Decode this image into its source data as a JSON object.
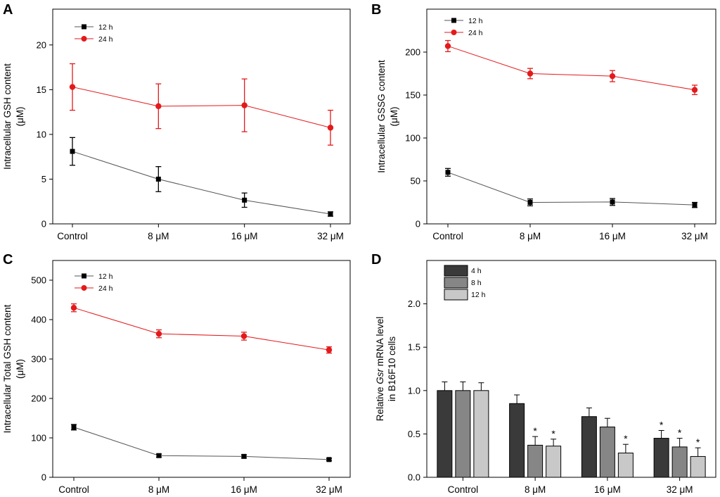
{
  "chart_data": [
    {
      "panel": "A",
      "type": "line",
      "categories": [
        "Control",
        "8 μM",
        "16 μM",
        "32 μM"
      ],
      "ylabel": [
        "Intracellular GSH content",
        "(μM)"
      ],
      "ylim": [
        0,
        24
      ],
      "yticks": [
        0,
        5,
        10,
        15,
        20
      ],
      "series": [
        {
          "name": "12 h",
          "color": "#000000",
          "marker": "square",
          "values": [
            8.1,
            5.0,
            2.65,
            1.1
          ],
          "errors": [
            1.55,
            1.4,
            0.8,
            0.25
          ]
        },
        {
          "name": "24 h",
          "color": "#e31a1c",
          "marker": "circle",
          "values": [
            15.3,
            13.15,
            13.25,
            10.75
          ],
          "errors": [
            2.6,
            2.5,
            2.95,
            1.95
          ]
        }
      ]
    },
    {
      "panel": "B",
      "type": "line",
      "categories": [
        "Control",
        "8 μM",
        "16 μM",
        "32 μM"
      ],
      "ylabel": [
        "Intracellular GSSG content",
        "(μM)"
      ],
      "ylim": [
        0,
        250
      ],
      "yticks": [
        0,
        50,
        100,
        150,
        200
      ],
      "series": [
        {
          "name": "12 h",
          "color": "#000000",
          "marker": "square",
          "values": [
            60,
            25,
            25.5,
            22
          ],
          "errors": [
            4.5,
            4.0,
            4.0,
            3.0
          ]
        },
        {
          "name": "24 h",
          "color": "#e31a1c",
          "marker": "circle",
          "values": [
            207,
            175,
            172,
            156
          ],
          "errors": [
            6.5,
            6.0,
            6.5,
            5.5
          ]
        }
      ]
    },
    {
      "panel": "C",
      "type": "line",
      "categories": [
        "Control",
        "8 μM",
        "16 μM",
        "32 μM"
      ],
      "ylabel": [
        "Intracellular Total GSH content",
        "(μM)"
      ],
      "ylim": [
        0,
        550
      ],
      "yticks": [
        0,
        100,
        200,
        300,
        400,
        500
      ],
      "series": [
        {
          "name": "12 h",
          "color": "#000000",
          "marker": "square",
          "values": [
            127,
            55,
            53,
            45
          ],
          "errors": [
            7,
            4,
            4,
            3
          ]
        },
        {
          "name": "24 h",
          "color": "#e31a1c",
          "marker": "circle",
          "values": [
            430,
            364,
            358,
            323
          ],
          "errors": [
            10,
            10,
            10,
            8
          ]
        }
      ]
    },
    {
      "panel": "D",
      "type": "bar",
      "categories": [
        "Control",
        "8 μM",
        "16 μM",
        "32 μM"
      ],
      "ylabel_prefix": "Relative ",
      "ylabel_gene": "Gsr",
      "ylabel_suffix": " mRNA level",
      "ylabel_line2": "in B16F10 cells",
      "ylim": [
        0,
        2.5
      ],
      "yticks": [
        0.0,
        0.5,
        1.0,
        1.5,
        2.0
      ],
      "significance_marker": "*",
      "series": [
        {
          "name": "4 h",
          "color": "#3a3a3a",
          "values": [
            1.0,
            0.85,
            0.7,
            0.45
          ],
          "errors": [
            0.1,
            0.1,
            0.1,
            0.09
          ],
          "significant": [
            false,
            false,
            false,
            true
          ]
        },
        {
          "name": "8 h",
          "color": "#868686",
          "values": [
            1.0,
            0.37,
            0.58,
            0.35
          ],
          "errors": [
            0.1,
            0.1,
            0.1,
            0.1
          ],
          "significant": [
            false,
            true,
            false,
            true
          ]
        },
        {
          "name": "12 h",
          "color": "#c8c8c8",
          "values": [
            1.0,
            0.36,
            0.28,
            0.24
          ],
          "errors": [
            0.09,
            0.08,
            0.1,
            0.1
          ],
          "significant": [
            false,
            true,
            true,
            true
          ]
        }
      ]
    }
  ]
}
